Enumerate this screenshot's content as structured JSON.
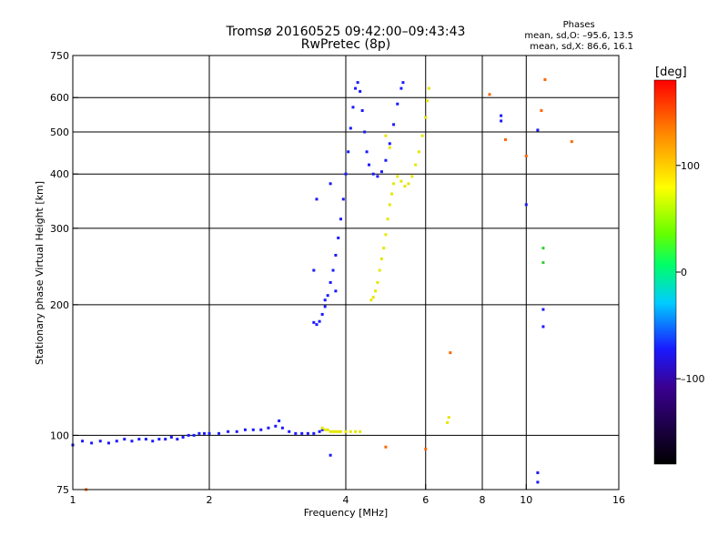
{
  "header": {
    "title": "Tromsø 20160525 09:42:00–09:43:43",
    "subtitle": "RwPretec (8p)"
  },
  "phases_box": {
    "heading": "Phases",
    "line_o": "mean, sd,O: –95.6, 13.5",
    "line_x": "mean, sd,X: 86.6, 16.1"
  },
  "colorbar": {
    "label": "[deg]",
    "ticks": [
      "100",
      "0",
      "–100"
    ],
    "tick_values": [
      100,
      0,
      -100
    ],
    "range": [
      -180,
      180
    ]
  },
  "colors": {
    "o_mode": "#1a1aff",
    "x_mode": "#e6e600",
    "grid": "#000000"
  },
  "chart_data": {
    "type": "scatter",
    "title": "Tromsø 20160525 09:42:00–09:43:43",
    "subtitle": "RwPretec (8p)",
    "xlabel": "Frequency [MHz]",
    "ylabel": "Stationary phase Virtual Height [km]",
    "x_scale": "log",
    "y_scale": "log",
    "xlim": [
      1,
      16
    ],
    "ylim": [
      75,
      750
    ],
    "x_ticks": [
      1,
      2,
      4,
      6,
      8,
      10,
      16
    ],
    "y_ticks": [
      75,
      100,
      200,
      300,
      400,
      500,
      600,
      750
    ],
    "x_grid": [
      2,
      4,
      6,
      8,
      10
    ],
    "y_grid": [
      100,
      200,
      300,
      400,
      500,
      600
    ],
    "series": [
      {
        "mode": "o",
        "color": "#1a1aff",
        "points": [
          [
            1.0,
            95
          ],
          [
            1.05,
            97
          ],
          [
            1.1,
            96
          ],
          [
            1.15,
            97
          ],
          [
            1.2,
            96
          ],
          [
            1.25,
            97
          ],
          [
            1.3,
            98
          ],
          [
            1.35,
            97
          ],
          [
            1.4,
            98
          ],
          [
            1.45,
            98
          ],
          [
            1.5,
            97
          ],
          [
            1.55,
            98
          ],
          [
            1.6,
            98
          ],
          [
            1.65,
            99
          ],
          [
            1.7,
            98
          ],
          [
            1.75,
            99
          ],
          [
            1.8,
            100
          ],
          [
            1.85,
            100
          ],
          [
            1.9,
            101
          ],
          [
            1.95,
            101
          ],
          [
            2.0,
            101
          ],
          [
            2.1,
            101
          ],
          [
            2.2,
            102
          ],
          [
            2.3,
            102
          ],
          [
            2.4,
            103
          ],
          [
            2.5,
            103
          ],
          [
            2.6,
            103
          ],
          [
            2.7,
            104
          ],
          [
            2.8,
            105
          ],
          [
            2.85,
            108
          ],
          [
            2.9,
            104
          ],
          [
            3.0,
            102
          ],
          [
            3.1,
            101
          ],
          [
            3.2,
            101
          ],
          [
            3.3,
            101
          ],
          [
            3.4,
            101
          ],
          [
            3.5,
            102
          ],
          [
            3.55,
            103
          ],
          [
            3.4,
            182
          ],
          [
            3.45,
            180
          ],
          [
            3.5,
            183
          ],
          [
            3.55,
            190
          ],
          [
            3.6,
            198
          ],
          [
            3.65,
            210
          ],
          [
            3.7,
            225
          ],
          [
            3.75,
            240
          ],
          [
            3.8,
            260
          ],
          [
            3.85,
            285
          ],
          [
            3.9,
            315
          ],
          [
            3.95,
            350
          ],
          [
            4.0,
            400
          ],
          [
            4.05,
            450
          ],
          [
            4.1,
            510
          ],
          [
            4.15,
            570
          ],
          [
            4.2,
            630
          ],
          [
            4.25,
            650
          ],
          [
            4.3,
            620
          ],
          [
            4.35,
            560
          ],
          [
            4.4,
            500
          ],
          [
            4.45,
            450
          ],
          [
            4.5,
            420
          ],
          [
            4.6,
            400
          ],
          [
            4.7,
            395
          ],
          [
            4.8,
            405
          ],
          [
            4.9,
            430
          ],
          [
            5.0,
            470
          ],
          [
            5.1,
            520
          ],
          [
            5.2,
            580
          ],
          [
            5.3,
            630
          ],
          [
            5.35,
            650
          ],
          [
            3.45,
            350
          ],
          [
            3.7,
            380
          ],
          [
            3.4,
            240
          ],
          [
            3.6,
            205
          ],
          [
            3.8,
            215
          ]
        ]
      },
      {
        "mode": "x",
        "color": "#e6e600",
        "points": [
          [
            3.55,
            104
          ],
          [
            3.6,
            103
          ],
          [
            3.65,
            103
          ],
          [
            3.7,
            102
          ],
          [
            3.75,
            102
          ],
          [
            3.8,
            102
          ],
          [
            3.85,
            102
          ],
          [
            3.9,
            102
          ],
          [
            4.0,
            102
          ],
          [
            4.1,
            102
          ],
          [
            4.2,
            102
          ],
          [
            4.3,
            102
          ],
          [
            4.55,
            205
          ],
          [
            4.6,
            208
          ],
          [
            4.65,
            215
          ],
          [
            4.7,
            225
          ],
          [
            4.75,
            240
          ],
          [
            4.8,
            255
          ],
          [
            4.85,
            270
          ],
          [
            4.9,
            290
          ],
          [
            4.95,
            315
          ],
          [
            5.0,
            340
          ],
          [
            5.05,
            360
          ],
          [
            5.1,
            380
          ],
          [
            5.2,
            395
          ],
          [
            5.3,
            385
          ],
          [
            5.4,
            375
          ],
          [
            5.5,
            380
          ],
          [
            5.6,
            395
          ],
          [
            5.7,
            420
          ],
          [
            5.8,
            450
          ],
          [
            5.9,
            490
          ],
          [
            6.0,
            540
          ],
          [
            6.05,
            590
          ],
          [
            6.1,
            630
          ],
          [
            6.7,
            107
          ],
          [
            6.75,
            110
          ],
          [
            4.9,
            490
          ],
          [
            5.0,
            460
          ]
        ]
      },
      {
        "mode": "outliers",
        "color": "#ff6600",
        "points": [
          [
            1.07,
            75
          ],
          [
            8.3,
            610
          ],
          [
            9.0,
            480
          ],
          [
            10.0,
            440
          ],
          [
            10.8,
            560
          ],
          [
            11.0,
            660
          ],
          [
            12.6,
            475
          ],
          [
            4.9,
            94
          ],
          [
            6.0,
            93
          ],
          [
            6.8,
            155
          ]
        ]
      },
      {
        "mode": "outliers",
        "color": "#1a1aff",
        "points": [
          [
            8.8,
            545
          ],
          [
            8.8,
            530
          ],
          [
            10.6,
            505
          ],
          [
            10.0,
            340
          ],
          [
            10.9,
            195
          ],
          [
            10.9,
            178
          ],
          [
            10.6,
            82
          ],
          [
            10.6,
            78
          ],
          [
            3.7,
            90
          ]
        ]
      },
      {
        "mode": "outliers",
        "color": "#33cc33",
        "points": [
          [
            10.9,
            270
          ],
          [
            10.9,
            250
          ]
        ]
      }
    ]
  }
}
